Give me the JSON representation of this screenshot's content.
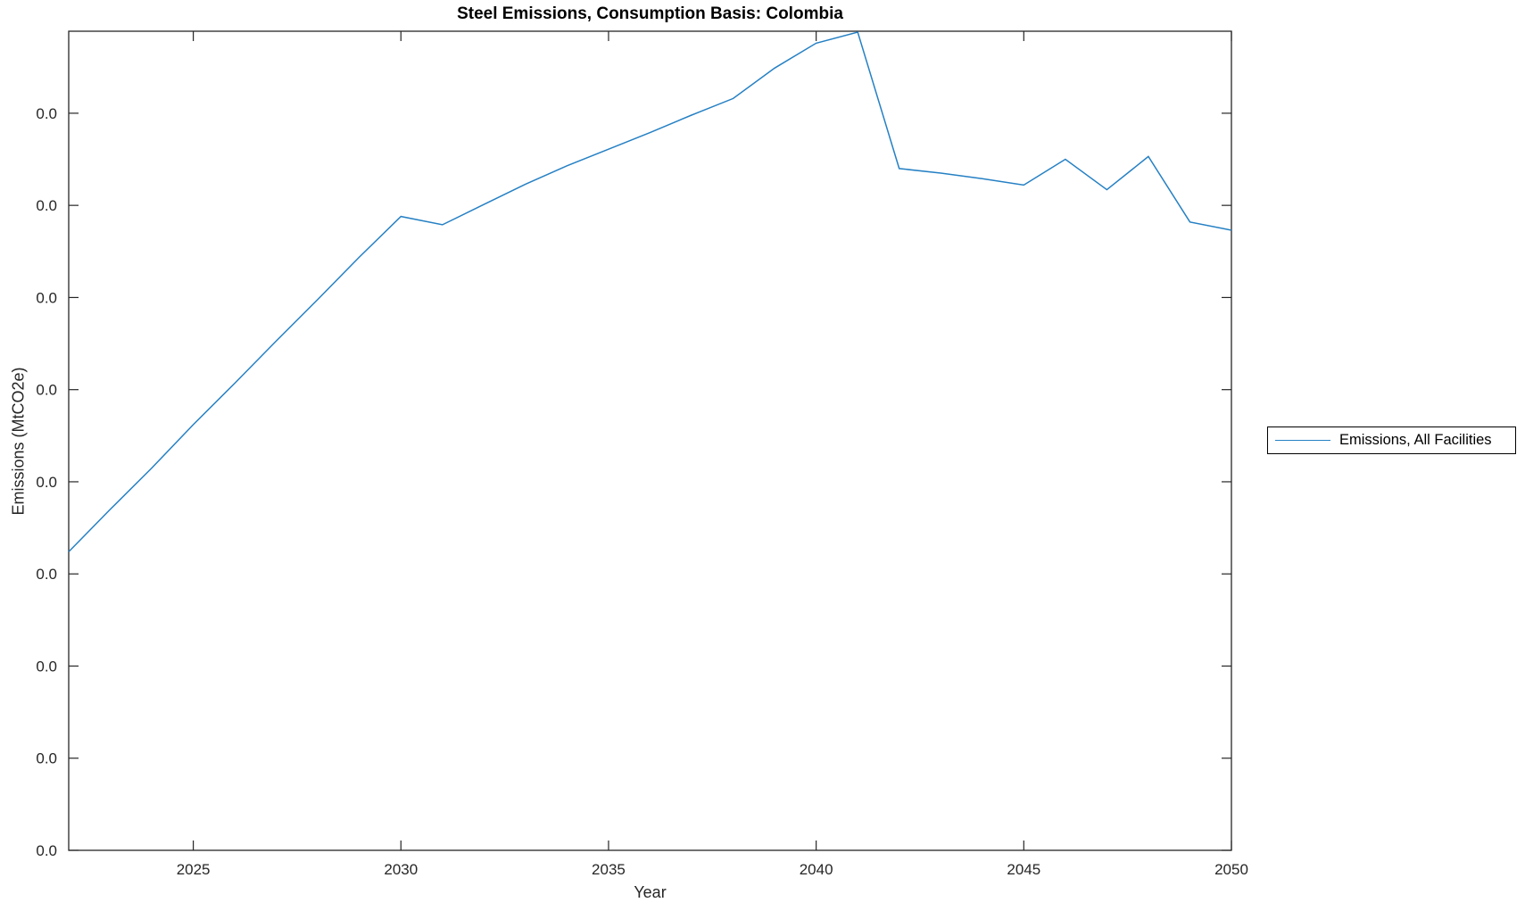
{
  "figure": {
    "title": "Steel Emissions, Consumption Basis: Colombia",
    "xlabel": "Year",
    "ylabel": "Emissions (MtCO2e)",
    "background_color": "#ffffff",
    "axis_color": "#262626",
    "legend": {
      "position": "right-outside",
      "border_color": "#000000",
      "items": [
        {
          "label": "Emissions, All Facilities",
          "color": "#2580c4",
          "marker": "line"
        }
      ]
    }
  },
  "chart_data": {
    "type": "line",
    "title": "Steel Emissions, Consumption Basis: Colombia",
    "xlabel": "Year",
    "ylabel": "Emissions (MtCO2e)",
    "grid": "off",
    "box": "on",
    "tick_direction": "in",
    "x_axis": {
      "range": [
        2022,
        2050
      ],
      "ticks": [
        2025,
        2030,
        2035,
        2040,
        2045,
        2050
      ],
      "tick_labels": [
        "2025",
        "2030",
        "2035",
        "2040",
        "2045",
        "2050"
      ]
    },
    "y_axis": {
      "tick_labels": [
        "0.0",
        "0.0",
        "0.0",
        "0.0",
        "0.0",
        "0.0",
        "0.0",
        "0.0",
        "0.0"
      ],
      "ticks_tick_units": [
        0,
        1,
        2,
        3,
        4,
        5,
        6,
        7,
        8
      ],
      "range_tick_units": [
        0,
        8.89
      ],
      "note": "All y tick labels display 0.0; series values below are estimated in units of one y-tick interval measured from the bottom tick."
    },
    "x": [
      2022,
      2023,
      2024,
      2025,
      2026,
      2027,
      2028,
      2029,
      2030,
      2031,
      2032,
      2033,
      2034,
      2035,
      2036,
      2037,
      2038,
      2039,
      2040,
      2041,
      2042,
      2043,
      2044,
      2045,
      2046,
      2047,
      2048,
      2049,
      2050
    ],
    "series": [
      {
        "name": "Emissions, All Facilities",
        "color": "#2580c4",
        "values_tick_units": [
          3.24,
          3.7,
          4.15,
          4.62,
          5.07,
          5.53,
          5.98,
          6.44,
          6.88,
          6.79,
          7.01,
          7.23,
          7.43,
          7.61,
          7.79,
          7.98,
          8.16,
          8.49,
          8.76,
          8.88,
          7.4,
          7.35,
          7.29,
          7.22,
          7.5,
          7.17,
          7.53,
          6.82,
          6.73
        ]
      }
    ],
    "legend_entries": [
      "Emissions, All Facilities"
    ]
  }
}
